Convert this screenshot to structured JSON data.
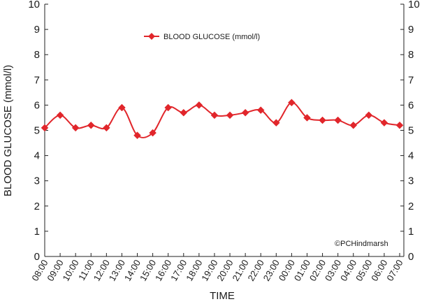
{
  "chart_data": {
    "type": "line",
    "xlabel": "TIME",
    "ylabel": "BLOOD GLUCOSE (mmol/l)",
    "ylim": [
      0,
      10
    ],
    "yticks": [
      "0",
      "1",
      "2",
      "3",
      "4",
      "5",
      "6",
      "7",
      "8",
      "9",
      "10"
    ],
    "grid": false,
    "legend_position": "top-center",
    "categories": [
      "08:00",
      "09:00",
      "10:00",
      "11:00",
      "12:00",
      "13:00",
      "14:00",
      "15:00",
      "16:00",
      "17:00",
      "18:00",
      "19:00",
      "20:00",
      "21:00",
      "22:00",
      "23:00",
      "00:00",
      "01:00",
      "02:00",
      "03:00",
      "04:00",
      "05:00",
      "06:00",
      "07:00"
    ],
    "series": [
      {
        "name": "BLOOD GLUCOSE (mmol/l)",
        "color": "#e1262b",
        "marker": "diamond",
        "values": [
          5.1,
          5.6,
          5.1,
          5.2,
          5.1,
          5.9,
          4.8,
          4.9,
          5.9,
          5.7,
          6.0,
          5.6,
          5.6,
          5.7,
          5.8,
          5.3,
          6.1,
          5.5,
          5.4,
          5.4,
          5.2,
          5.6,
          5.3,
          5.2
        ]
      }
    ],
    "annotations": [
      "©PCHindmarsh"
    ]
  }
}
